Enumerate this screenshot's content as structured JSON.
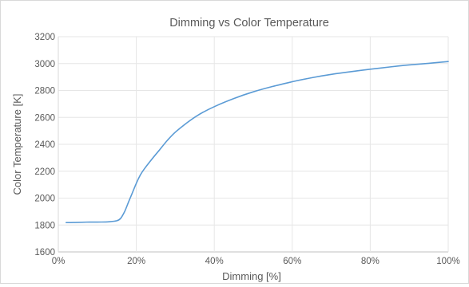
{
  "chart_data": {
    "type": "line",
    "title": "Dimming vs Color Temperature",
    "xlabel": "Dimming  [%]",
    "ylabel": "Color Temperature [K]",
    "xlim": [
      0,
      100
    ],
    "ylim": [
      1600,
      3200
    ],
    "x_ticks": [
      "0%",
      "20%",
      "40%",
      "60%",
      "80%",
      "100%"
    ],
    "y_ticks": [
      "1600",
      "1800",
      "2000",
      "2200",
      "2400",
      "2600",
      "2800",
      "3000",
      "3200"
    ],
    "grid": true,
    "legend": "none",
    "series": [
      {
        "color": "#5b9bd5",
        "x": [
          2,
          5,
          8,
          11,
          13,
          15,
          16,
          17,
          18,
          19,
          20,
          21,
          22,
          24,
          26,
          28,
          30,
          33,
          36,
          40,
          45,
          50,
          55,
          60,
          65,
          70,
          75,
          80,
          85,
          90,
          95,
          100
        ],
        "y": [
          1818,
          1820,
          1822,
          1822,
          1824,
          1832,
          1850,
          1900,
          1970,
          2040,
          2110,
          2170,
          2215,
          2290,
          2360,
          2430,
          2490,
          2560,
          2620,
          2680,
          2740,
          2790,
          2830,
          2865,
          2895,
          2920,
          2940,
          2958,
          2975,
          2990,
          3002,
          3015
        ]
      }
    ]
  }
}
